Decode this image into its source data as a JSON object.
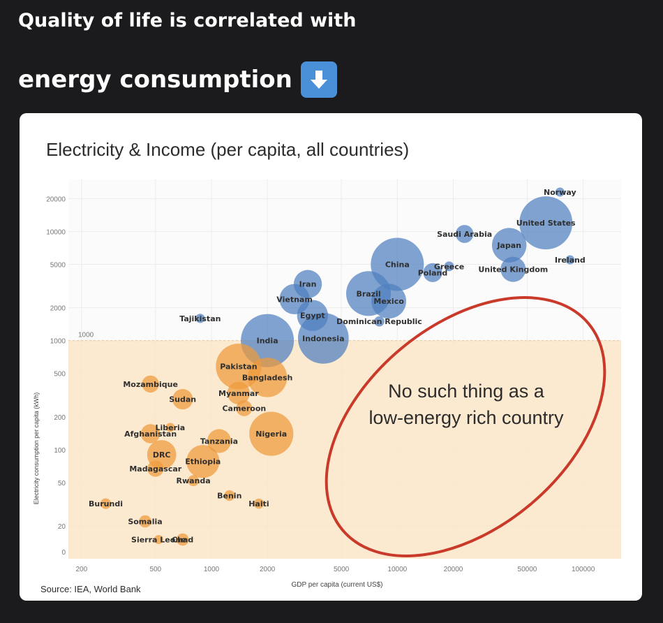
{
  "post": {
    "line1": "Quality of life is correlated with",
    "line2": "energy consumption",
    "emoji": "down-arrow-icon"
  },
  "colors": {
    "high": "#4f7fbf",
    "low": "#ee9a3a",
    "band": "#fbe6c8",
    "ellipse": "#c93a2a"
  },
  "chart_data": {
    "type": "scatter",
    "title": "Electricity & Income (per capita, all countries)",
    "xlabel": "GDP per capita (current US$)",
    "ylabel": "Electricity consumption per capita (kWh)",
    "x_scale": "log",
    "y_scale": "log",
    "xlim": [
      170,
      160000
    ],
    "ylim": [
      10,
      30000
    ],
    "x_ticks": [
      200,
      500,
      1000,
      2000,
      5000,
      10000,
      20000,
      50000,
      100000
    ],
    "x_tick_labels": [
      "200",
      "500",
      "1000",
      "2000",
      "5000",
      "10000",
      "20000",
      "50000",
      "100000"
    ],
    "y_ticks": [
      20,
      50,
      100,
      200,
      500,
      1000,
      2000,
      5000,
      10000,
      20000
    ],
    "y_tick_labels": [
      "20",
      "50",
      "100",
      "200",
      "500",
      "1000",
      "2000",
      "5000",
      "10000",
      "20000"
    ],
    "y_zero_label": "0",
    "threshold": {
      "value": 1000,
      "label": "1000"
    },
    "annotation": [
      "No such thing as a",
      "low-energy rich country"
    ],
    "source": "Source: IEA, World Bank",
    "countries": [
      {
        "name": "Norway",
        "gdp": 75000,
        "kwh": 23000,
        "pop": 5
      },
      {
        "name": "United States",
        "gdp": 63000,
        "kwh": 12000,
        "pop": 330
      },
      {
        "name": "Saudi Arabia",
        "gdp": 23000,
        "kwh": 9500,
        "pop": 34
      },
      {
        "name": "Japan",
        "gdp": 40000,
        "kwh": 7500,
        "pop": 126
      },
      {
        "name": "Ireland",
        "gdp": 85000,
        "kwh": 5500,
        "pop": 5
      },
      {
        "name": "China",
        "gdp": 10000,
        "kwh": 5000,
        "pop": 1400
      },
      {
        "name": "Greece",
        "gdp": 19000,
        "kwh": 4800,
        "pop": 10
      },
      {
        "name": "Poland",
        "gdp": 15500,
        "kwh": 4200,
        "pop": 38
      },
      {
        "name": "United Kingdom",
        "gdp": 42000,
        "kwh": 4500,
        "pop": 67
      },
      {
        "name": "Iran",
        "gdp": 3300,
        "kwh": 3300,
        "pop": 84
      },
      {
        "name": "Brazil",
        "gdp": 7000,
        "kwh": 2700,
        "pop": 212
      },
      {
        "name": "Mexico",
        "gdp": 9000,
        "kwh": 2300,
        "pop": 128
      },
      {
        "name": "Vietnam",
        "gdp": 2800,
        "kwh": 2400,
        "pop": 97
      },
      {
        "name": "Tajikistan",
        "gdp": 870,
        "kwh": 1600,
        "pop": 9
      },
      {
        "name": "Egypt",
        "gdp": 3500,
        "kwh": 1700,
        "pop": 102
      },
      {
        "name": "Dominican Republic",
        "gdp": 8000,
        "kwh": 1500,
        "pop": 11
      },
      {
        "name": "India",
        "gdp": 2000,
        "kwh": 1000,
        "pop": 1380
      },
      {
        "name": "Indonesia",
        "gdp": 4000,
        "kwh": 1050,
        "pop": 273
      },
      {
        "name": "Pakistan",
        "gdp": 1400,
        "kwh": 580,
        "pop": 220
      },
      {
        "name": "Bangladesh",
        "gdp": 2000,
        "kwh": 460,
        "pop": 165
      },
      {
        "name": "Mozambique",
        "gdp": 470,
        "kwh": 400,
        "pop": 31
      },
      {
        "name": "Myanmar",
        "gdp": 1400,
        "kwh": 330,
        "pop": 54
      },
      {
        "name": "Sudan",
        "gdp": 700,
        "kwh": 290,
        "pop": 44
      },
      {
        "name": "Cameroon",
        "gdp": 1500,
        "kwh": 240,
        "pop": 27
      },
      {
        "name": "Liberia",
        "gdp": 600,
        "kwh": 160,
        "pop": 5
      },
      {
        "name": "Afghanistan",
        "gdp": 470,
        "kwh": 140,
        "pop": 39
      },
      {
        "name": "Nigeria",
        "gdp": 2100,
        "kwh": 140,
        "pop": 206
      },
      {
        "name": "Tanzania",
        "gdp": 1100,
        "kwh": 120,
        "pop": 60
      },
      {
        "name": "DRC",
        "gdp": 540,
        "kwh": 90,
        "pop": 90
      },
      {
        "name": "Ethiopia",
        "gdp": 900,
        "kwh": 78,
        "pop": 115
      },
      {
        "name": "Madagascar",
        "gdp": 500,
        "kwh": 67,
        "pop": 28
      },
      {
        "name": "Rwanda",
        "gdp": 800,
        "kwh": 52,
        "pop": 13
      },
      {
        "name": "Benin",
        "gdp": 1250,
        "kwh": 38,
        "pop": 12
      },
      {
        "name": "Haiti",
        "gdp": 1800,
        "kwh": 32,
        "pop": 11
      },
      {
        "name": "Burundi",
        "gdp": 270,
        "kwh": 32,
        "pop": 12
      },
      {
        "name": "Somalia",
        "gdp": 440,
        "kwh": 22,
        "pop": 16
      },
      {
        "name": "Sierra Leone",
        "gdp": 520,
        "kwh": 15,
        "pop": 8
      },
      {
        "name": "Chad",
        "gdp": 700,
        "kwh": 15,
        "pop": 16
      }
    ]
  }
}
